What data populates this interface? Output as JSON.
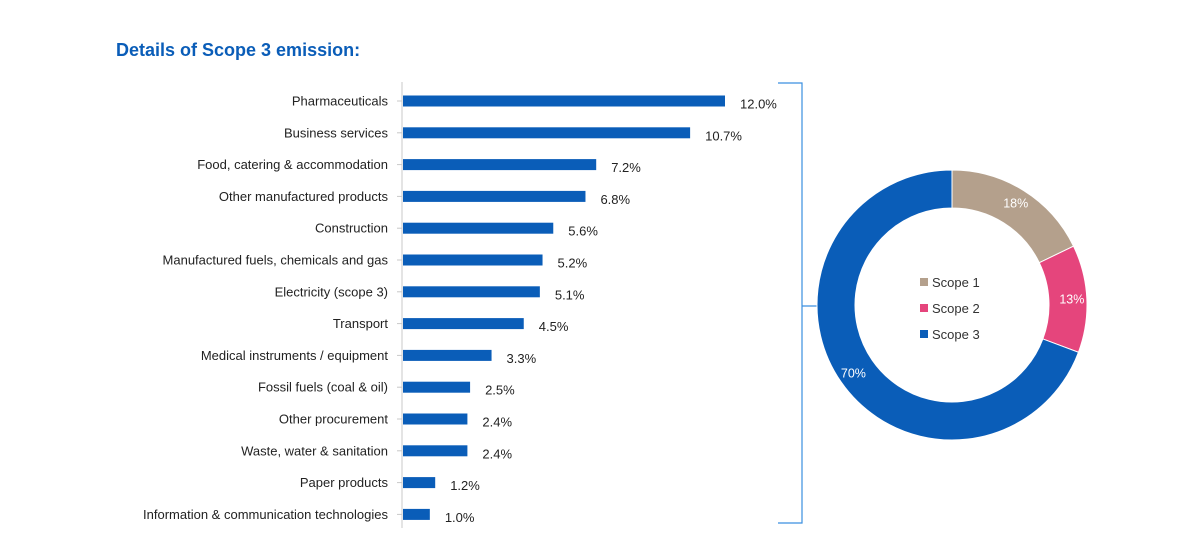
{
  "page": {
    "title": "Details of Scope 3 emission:"
  },
  "chart_data": [
    {
      "type": "bar",
      "orientation": "horizontal",
      "title": "Details of Scope 3 emission:",
      "categories": [
        "Pharmaceuticals",
        "Business services",
        "Food, catering & accommodation",
        "Other manufactured products",
        "Construction",
        "Manufactured fuels, chemicals and gas",
        "Electricity (scope 3)",
        "Transport",
        "Medical instruments / equipment",
        "Fossil fuels (coal & oil)",
        "Other procurement",
        "Waste, water & sanitation",
        "Paper products",
        "Information & communication technologies"
      ],
      "values": [
        12.0,
        10.7,
        7.2,
        6.8,
        5.6,
        5.2,
        5.1,
        4.5,
        3.3,
        2.5,
        2.4,
        2.4,
        1.2,
        1.0
      ],
      "labels": [
        "12.0%",
        "10.7%",
        "7.2%",
        "6.8%",
        "5.6%",
        "5.2%",
        "5.1%",
        "4.5%",
        "3.3%",
        "2.5%",
        "2.4%",
        "2.4%",
        "1.2%",
        "1.0%"
      ],
      "unit": "%",
      "xlim": [
        0,
        12.0
      ],
      "color": "#0a5db8"
    },
    {
      "type": "pie",
      "variant": "donut",
      "categories": [
        "Scope 1",
        "Scope 2",
        "Scope 3"
      ],
      "values": [
        18,
        13,
        70
      ],
      "labels": [
        "18%",
        "13%",
        "70%"
      ],
      "colors": [
        "#b4a08c",
        "#e5457c",
        "#0a5db8"
      ],
      "legend_position": "center"
    }
  ]
}
